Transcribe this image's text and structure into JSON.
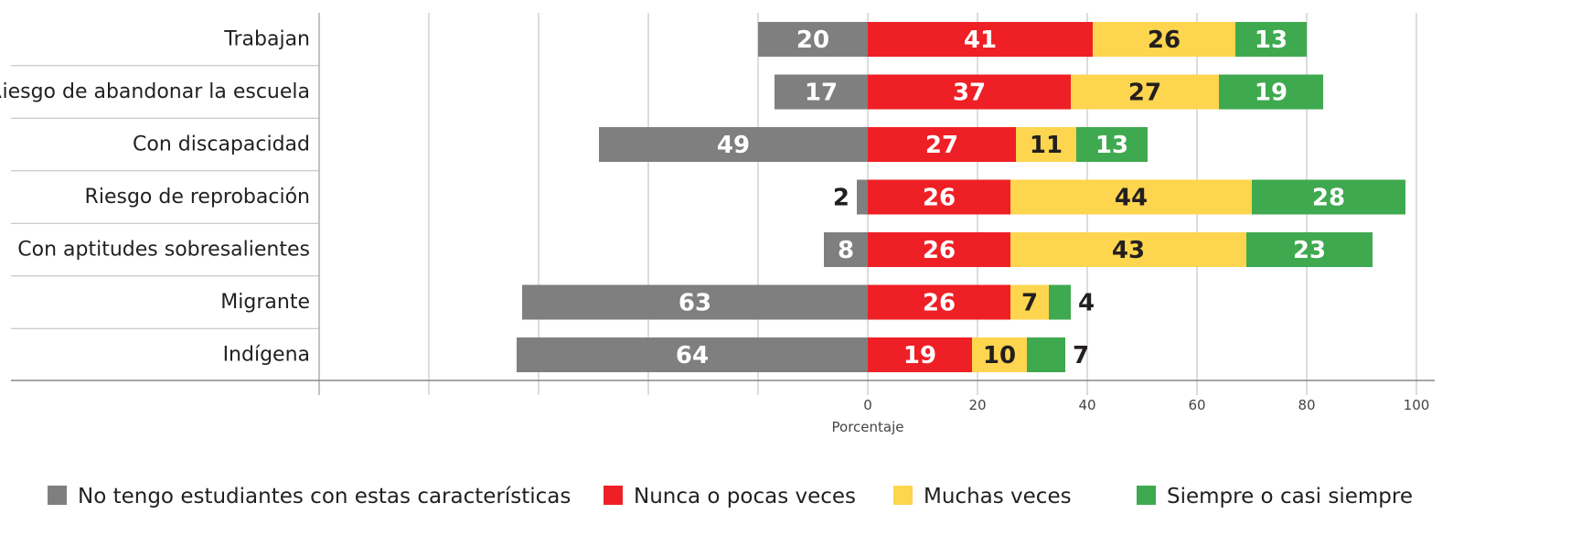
{
  "chart_data": {
    "type": "diverging-bar",
    "xlabel": "Porcentaje",
    "categories": [
      "Trabajan",
      "Riesgo de abandonar la escuela",
      "Con discapacidad",
      "Riesgo de reprobación",
      "Con aptitudes sobresalientes",
      "Migrante",
      "Indígena"
    ],
    "series": [
      {
        "name": "No tengo estudiantes con estas características",
        "color": "#7f7f80",
        "values": [
          20,
          17,
          49,
          2,
          8,
          63,
          64
        ]
      },
      {
        "name": "Nunca o pocas veces",
        "color": "#ee2026",
        "values": [
          41,
          37,
          27,
          26,
          26,
          26,
          19
        ]
      },
      {
        "name": "Muchas veces",
        "color": "#fdd54f",
        "values": [
          26,
          27,
          11,
          44,
          43,
          7,
          10
        ]
      },
      {
        "name": "Siempre o casi siempre",
        "color": "#3fa94f",
        "values": [
          13,
          19,
          13,
          28,
          23,
          4,
          7
        ]
      }
    ],
    "xlim": [
      -100,
      100
    ],
    "xticks": [
      0,
      20,
      40,
      60,
      80,
      100
    ],
    "unlabeled_xticks": [
      -100,
      -80,
      -60,
      -40,
      -20
    ],
    "grid": true
  }
}
